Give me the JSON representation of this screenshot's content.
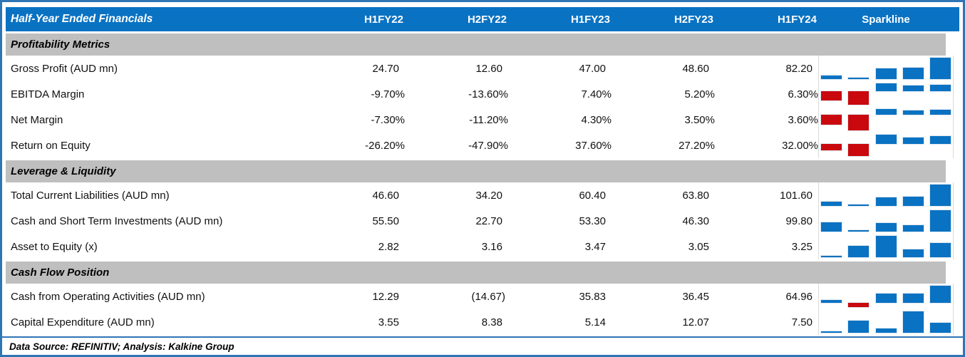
{
  "header": {
    "title": "Half-Year Ended Financials",
    "sparkline_label": "Sparkline"
  },
  "footer": {
    "text": "Data Source: REFINITIV; Analysis: Kalkine Group"
  },
  "colors": {
    "header_bg": "#0A72C2",
    "section_bg": "#BFBFBF",
    "positive_bar": "#0A72C2",
    "negative_bar": "#C9090E",
    "frame_border": "#2E75B6"
  },
  "chart_data": {
    "type": "table",
    "title": "Half-Year Ended Financials",
    "columns": [
      "H1FY22",
      "H2FY22",
      "H1FY23",
      "H2FY23",
      "H1FY24"
    ],
    "sparkline_column": "Sparkline",
    "sparkline_type": "bar",
    "sections": [
      {
        "title": "Profitability Metrics",
        "rows": [
          {
            "label": "Gross Profit (AUD mn)",
            "display": [
              "24.70",
              "12.60",
              "47.00",
              "48.60",
              "82.20"
            ],
            "values": [
              24.7,
              12.6,
              47.0,
              48.6,
              82.2
            ]
          },
          {
            "label": "EBITDA Margin",
            "display": [
              "-9.70%",
              "-13.60%",
              "7.40%",
              "5.20%",
              "6.30%"
            ],
            "values": [
              -9.7,
              -13.6,
              7.4,
              5.2,
              6.3
            ]
          },
          {
            "label": "Net Margin",
            "display": [
              "-7.30%",
              "-11.20%",
              "4.30%",
              "3.50%",
              "3.60%"
            ],
            "values": [
              -7.3,
              -11.2,
              4.3,
              3.5,
              3.6
            ]
          },
          {
            "label": "Return on Equity",
            "display": [
              "-26.20%",
              "-47.90%",
              "37.60%",
              "27.20%",
              "32.00%"
            ],
            "values": [
              -26.2,
              -47.9,
              37.6,
              27.2,
              32.0
            ]
          }
        ]
      },
      {
        "title": "Leverage & Liquidity",
        "rows": [
          {
            "label": "Total Current Liabilities (AUD mn)",
            "display": [
              "46.60",
              "34.20",
              "60.40",
              "63.80",
              "101.60"
            ],
            "values": [
              46.6,
              34.2,
              60.4,
              63.8,
              101.6
            ]
          },
          {
            "label": "Cash and Short Term Investments (AUD mn)",
            "display": [
              "55.50",
              "22.70",
              "53.30",
              "46.30",
              "99.80"
            ],
            "values": [
              55.5,
              22.7,
              53.3,
              46.3,
              99.8
            ]
          },
          {
            "label": "Asset to Equity (x)",
            "display": [
              "2.82",
              "3.16",
              "3.47",
              "3.05",
              "3.25"
            ],
            "values": [
              2.82,
              3.16,
              3.47,
              3.05,
              3.25
            ]
          }
        ]
      },
      {
        "title": "Cash Flow Position",
        "rows": [
          {
            "label": "Cash from Operating Activities (AUD mn)",
            "display": [
              "12.29",
              "(14.67)",
              "35.83",
              "36.45",
              "64.96"
            ],
            "values": [
              12.29,
              -14.67,
              35.83,
              36.45,
              64.96
            ]
          },
          {
            "label": "Capital Expenditure (AUD mn)",
            "display": [
              "3.55",
              "8.38",
              "5.14",
              "12.07",
              "7.50"
            ],
            "values": [
              3.55,
              8.38,
              5.14,
              12.07,
              7.5
            ]
          }
        ]
      }
    ]
  }
}
